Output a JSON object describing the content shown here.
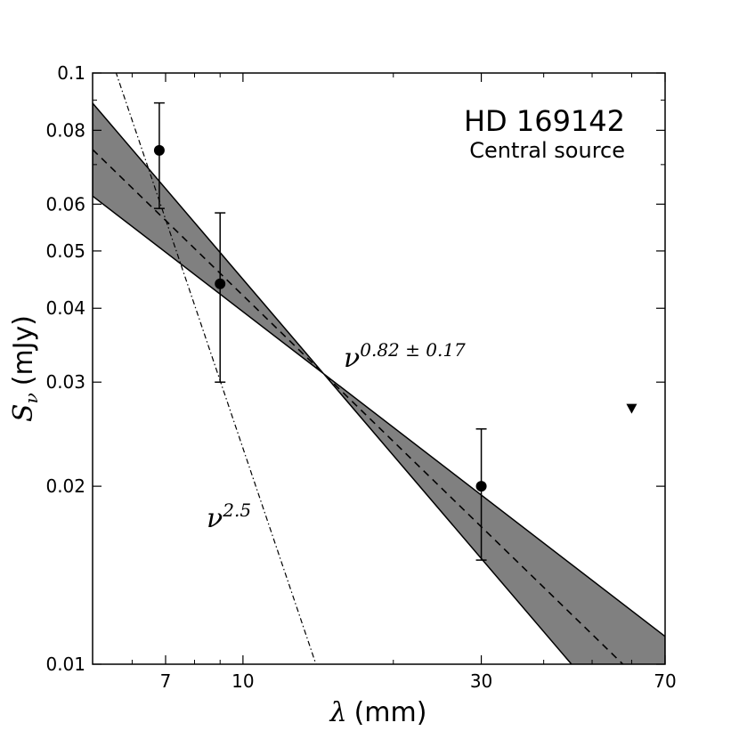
{
  "chart_data": {
    "type": "scatter",
    "title": "HD 169142",
    "subtitle": "Central source",
    "xlabel_symbol": "λ",
    "xlabel_unit": "(mm)",
    "ylabel_symbol_base": "S",
    "ylabel_symbol_sub": "ν",
    "ylabel_unit": "(mJy)",
    "x_scale": "log",
    "y_scale": "log",
    "xlim": [
      5,
      70
    ],
    "ylim": [
      0.01,
      0.1
    ],
    "x_ticks": [
      {
        "value": 7,
        "label": "7"
      },
      {
        "value": 10,
        "label": "10"
      },
      {
        "value": 30,
        "label": "30"
      },
      {
        "value": 70,
        "label": "70"
      }
    ],
    "y_ticks": [
      {
        "value": 0.01,
        "label": "0.01"
      },
      {
        "value": 0.02,
        "label": "0.02"
      },
      {
        "value": 0.03,
        "label": "0.03"
      },
      {
        "value": 0.04,
        "label": "0.04"
      },
      {
        "value": 0.05,
        "label": "0.05"
      },
      {
        "value": 0.06,
        "label": "0.06"
      },
      {
        "value": 0.08,
        "label": "0.08"
      },
      {
        "value": 0.1,
        "label": "0.1"
      }
    ],
    "points": [
      {
        "x": 6.8,
        "y": 0.074,
        "y_low": 0.059,
        "y_high": 0.089
      },
      {
        "x": 9.0,
        "y": 0.044,
        "y_low": 0.03,
        "y_high": 0.058
      },
      {
        "x": 30.0,
        "y": 0.02,
        "y_low": 0.015,
        "y_high": 0.025
      }
    ],
    "upper_limits": [
      {
        "x": 60.0,
        "y": 0.027
      }
    ],
    "fit": {
      "label_base": "ν",
      "label_exp": "0.82 ± 0.17",
      "pivot": {
        "x": 14.5,
        "y": 0.031
      },
      "slope": -0.82,
      "slope_low": -0.65,
      "slope_high": -0.99,
      "band_color": "#808080"
    },
    "reference_line": {
      "label_base": "ν",
      "label_exp": "2.5",
      "slope": -2.5,
      "anchor": {
        "x": 14.0,
        "y": 0.01
      }
    },
    "grid": false
  }
}
